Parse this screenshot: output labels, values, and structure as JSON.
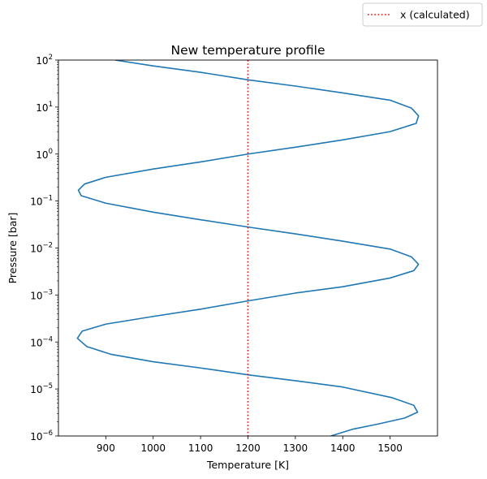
{
  "chart_data": {
    "type": "line",
    "title": "New temperature profile",
    "xlabel": "Temperature [K]",
    "ylabel": "Pressure [bar]",
    "xlim": [
      800,
      1600
    ],
    "ylim": [
      1e-06,
      100
    ],
    "yscale": "log",
    "grid": false,
    "legend_position": "top-right, outside the axes",
    "x_ticks": [
      900,
      1000,
      1100,
      1200,
      1300,
      1400,
      1500
    ],
    "x_tick_labels": [
      "900",
      "1000",
      "1100",
      "1200",
      "1300",
      "1400",
      "1500"
    ],
    "y_ticks": [
      1e-06,
      1e-05,
      0.0001,
      0.001,
      0.01,
      0.1,
      1,
      10,
      100
    ],
    "y_tick_labels": [
      {
        "base": "10",
        "exp": "−6"
      },
      {
        "base": "10",
        "exp": "−5"
      },
      {
        "base": "10",
        "exp": "−4"
      },
      {
        "base": "10",
        "exp": "−3"
      },
      {
        "base": "10",
        "exp": "−2"
      },
      {
        "base": "10",
        "exp": "−1"
      },
      {
        "base": "10",
        "exp": "0"
      },
      {
        "base": "10",
        "exp": "1"
      },
      {
        "base": "10",
        "exp": "2"
      }
    ],
    "series": [
      {
        "color": "#1f77b4",
        "style": "solid",
        "points": [
          {
            "x": 1375,
            "y": 1e-06
          },
          {
            "x": 1422,
            "y": 1.4e-06
          },
          {
            "x": 1475,
            "y": 1.8e-06
          },
          {
            "x": 1530,
            "y": 2.4e-06
          },
          {
            "x": 1558,
            "y": 3.2e-06
          },
          {
            "x": 1550,
            "y": 4.5e-06
          },
          {
            "x": 1505,
            "y": 6.5e-06
          },
          {
            "x": 1400,
            "y": 1.1e-05
          },
          {
            "x": 1300,
            "y": 1.5e-05
          },
          {
            "x": 1200,
            "y": 2e-05
          },
          {
            "x": 1100,
            "y": 2.8e-05
          },
          {
            "x": 1000,
            "y": 3.8e-05
          },
          {
            "x": 910,
            "y": 5.5e-05
          },
          {
            "x": 860,
            "y": 8e-05
          },
          {
            "x": 840,
            "y": 0.00012
          },
          {
            "x": 850,
            "y": 0.00017
          },
          {
            "x": 900,
            "y": 0.00024
          },
          {
            "x": 1000,
            "y": 0.00035
          },
          {
            "x": 1100,
            "y": 0.0005
          },
          {
            "x": 1200,
            "y": 0.00075
          },
          {
            "x": 1300,
            "y": 0.0011
          },
          {
            "x": 1400,
            "y": 0.0015
          },
          {
            "x": 1500,
            "y": 0.0023
          },
          {
            "x": 1550,
            "y": 0.0033
          },
          {
            "x": 1560,
            "y": 0.0045
          },
          {
            "x": 1545,
            "y": 0.0065
          },
          {
            "x": 1500,
            "y": 0.0095
          },
          {
            "x": 1400,
            "y": 0.014
          },
          {
            "x": 1300,
            "y": 0.02
          },
          {
            "x": 1200,
            "y": 0.028
          },
          {
            "x": 1100,
            "y": 0.04
          },
          {
            "x": 1000,
            "y": 0.058
          },
          {
            "x": 900,
            "y": 0.09
          },
          {
            "x": 848,
            "y": 0.13
          },
          {
            "x": 842,
            "y": 0.17
          },
          {
            "x": 855,
            "y": 0.23
          },
          {
            "x": 900,
            "y": 0.32
          },
          {
            "x": 1000,
            "y": 0.48
          },
          {
            "x": 1100,
            "y": 0.68
          },
          {
            "x": 1200,
            "y": 1.0
          },
          {
            "x": 1300,
            "y": 1.4
          },
          {
            "x": 1400,
            "y": 2.0
          },
          {
            "x": 1500,
            "y": 3.0
          },
          {
            "x": 1555,
            "y": 4.5
          },
          {
            "x": 1560,
            "y": 6.5
          },
          {
            "x": 1545,
            "y": 9.5
          },
          {
            "x": 1500,
            "y": 14
          },
          {
            "x": 1400,
            "y": 20
          },
          {
            "x": 1300,
            "y": 28
          },
          {
            "x": 1200,
            "y": 38
          },
          {
            "x": 1100,
            "y": 55
          },
          {
            "x": 1000,
            "y": 75
          },
          {
            "x": 920,
            "y": 100
          }
        ]
      },
      {
        "name": "x (calculated)",
        "color": "#ff0000",
        "style": "dotted",
        "x_constant": 1200
      }
    ]
  }
}
